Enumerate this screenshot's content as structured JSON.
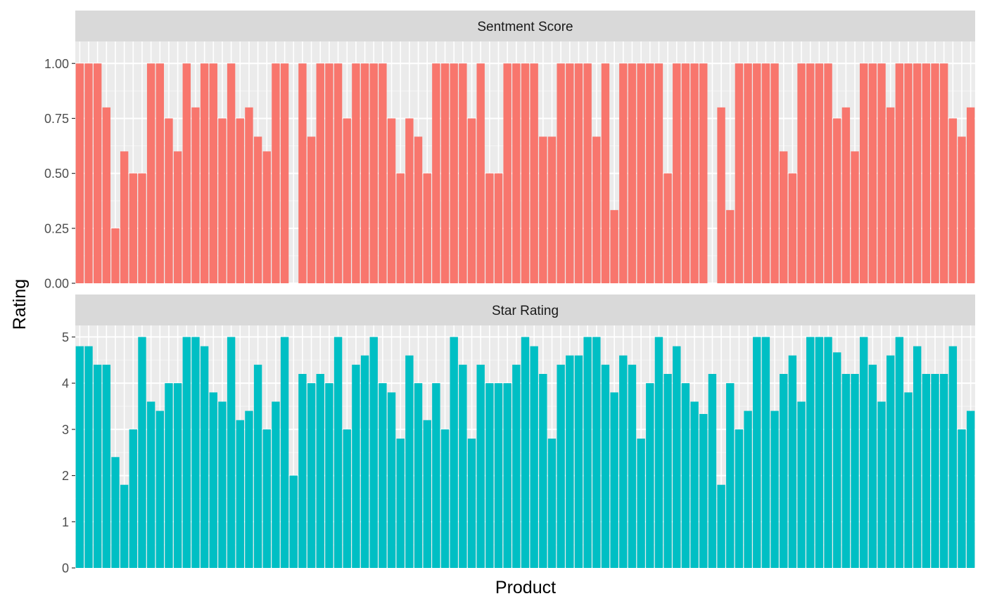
{
  "chart_data": {
    "type": "bar",
    "xlabel": "Product",
    "ylabel": "Rating",
    "x_tick_labels_shown": false,
    "grid": true,
    "legend": "none",
    "panels": [
      {
        "name": "Sentment Score",
        "color": "#F8766D",
        "ylim": [
          0,
          1.1
        ],
        "ticks": [
          0,
          0.25,
          0.5,
          0.75,
          1.0
        ],
        "tick_labels": [
          "0.00",
          "0.25",
          "0.50",
          "0.75",
          "1.00"
        ],
        "values": [
          1.0,
          1.0,
          1.0,
          0.8,
          0.25,
          0.6,
          0.5,
          0.5,
          1.0,
          1.0,
          0.75,
          0.6,
          1.0,
          0.8,
          1.0,
          1.0,
          0.75,
          1.0,
          0.75,
          0.8,
          0.667,
          0.6,
          1.0,
          1.0,
          null,
          1.0,
          0.667,
          1.0,
          1.0,
          1.0,
          0.75,
          1.0,
          1.0,
          1.0,
          1.0,
          0.75,
          0.5,
          0.75,
          0.667,
          0.5,
          1.0,
          1.0,
          1.0,
          1.0,
          0.75,
          1.0,
          0.5,
          0.5,
          1.0,
          1.0,
          1.0,
          1.0,
          0.667,
          0.667,
          1.0,
          1.0,
          1.0,
          1.0,
          0.667,
          1.0,
          0.333,
          1.0,
          1.0,
          1.0,
          1.0,
          1.0,
          0.5,
          1.0,
          1.0,
          1.0,
          1.0,
          null,
          0.8,
          0.333,
          1.0,
          1.0,
          1.0,
          1.0,
          1.0,
          0.6,
          0.5,
          1.0,
          1.0,
          1.0,
          1.0,
          0.75,
          0.8,
          0.6,
          1.0,
          1.0,
          1.0,
          0.8,
          1.0,
          1.0,
          1.0,
          1.0,
          1.0,
          1.0,
          0.75,
          0.667,
          0.8
        ]
      },
      {
        "name": "Star Rating",
        "color": "#00BFC4",
        "ylim": [
          0,
          5.25
        ],
        "ticks": [
          0,
          1,
          2,
          3,
          4,
          5
        ],
        "tick_labels": [
          "0",
          "1",
          "2",
          "3",
          "4",
          "5"
        ],
        "values": [
          4.8,
          4.8,
          4.4,
          4.4,
          2.4,
          1.8,
          3.0,
          5.0,
          3.6,
          3.4,
          4.0,
          4.0,
          5.0,
          5.0,
          4.8,
          3.8,
          3.6,
          5.0,
          3.2,
          3.4,
          4.4,
          3.0,
          3.6,
          5.0,
          2.0,
          4.2,
          4.0,
          4.2,
          4.0,
          5.0,
          3.0,
          4.4,
          4.6,
          5.0,
          4.0,
          3.8,
          2.8,
          4.6,
          4.0,
          3.2,
          4.0,
          3.0,
          5.0,
          4.4,
          2.8,
          4.4,
          4.0,
          4.0,
          4.0,
          4.4,
          5.0,
          4.8,
          4.2,
          2.8,
          4.4,
          4.6,
          4.6,
          5.0,
          5.0,
          4.4,
          3.8,
          4.6,
          4.4,
          2.8,
          4.0,
          5.0,
          4.2,
          4.8,
          4.0,
          3.6,
          3.333,
          4.2,
          1.8,
          4.0,
          3.0,
          3.4,
          5.0,
          5.0,
          3.4,
          4.2,
          4.6,
          3.6,
          5.0,
          5.0,
          5.0,
          4.667,
          4.2,
          4.2,
          5.0,
          4.4,
          3.6,
          4.6,
          5.0,
          3.8,
          4.8,
          4.2,
          4.2,
          4.2,
          4.8,
          3.0,
          3.4
        ]
      }
    ]
  }
}
